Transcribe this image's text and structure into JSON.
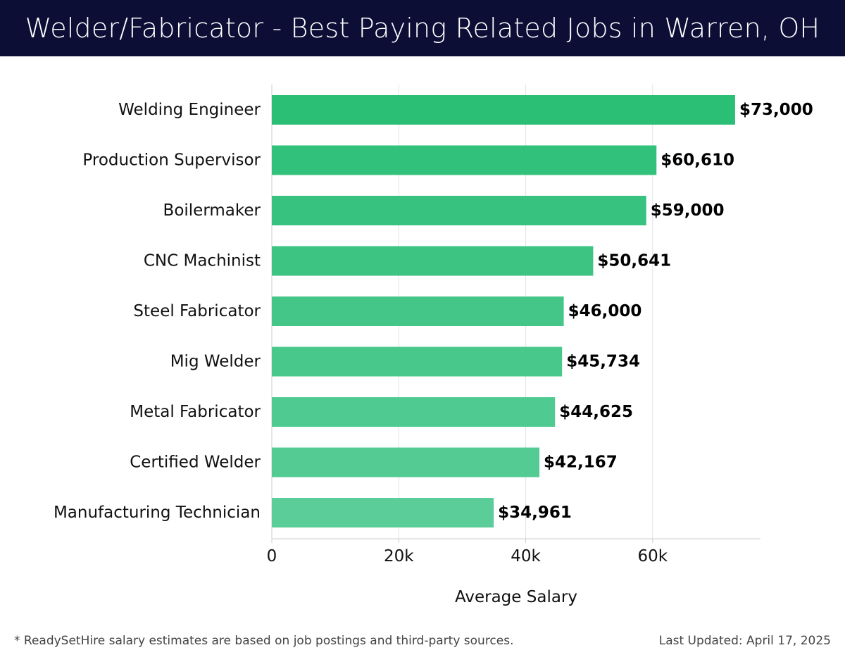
{
  "header": {
    "title": "Welder/Fabricator - Best Paying Related Jobs in Warren, OH"
  },
  "footer": {
    "note": "* ReadySetHire salary estimates are based on job postings and third-party sources.",
    "updated": "Last Updated: April 17, 2025"
  },
  "chart_data": {
    "type": "bar",
    "orientation": "horizontal",
    "categories": [
      "Welding Engineer",
      "Production Supervisor",
      "Boilermaker",
      "CNC Machinist",
      "Steel Fabricator",
      "Mig Welder",
      "Metal Fabricator",
      "Certified Welder",
      "Manufacturing Technician"
    ],
    "values": [
      73000,
      60610,
      59000,
      50641,
      46000,
      45734,
      44625,
      42167,
      34961
    ],
    "value_labels": [
      "$73,000",
      "$60,610",
      "$59,000",
      "$50,641",
      "$46,000",
      "$45,734",
      "$44,625",
      "$42,167",
      "$34,961"
    ],
    "title": "",
    "xlabel": "Average Salary",
    "ylabel": "",
    "xlim": [
      0,
      77000
    ],
    "xticks": [
      0,
      20000,
      40000,
      60000
    ],
    "xtick_labels": [
      "0",
      "20k",
      "40k",
      "60k"
    ],
    "grid": true,
    "legend": "none",
    "colors": {
      "bar_top": "#2bbf76",
      "bar_bottom": "#5bcd98",
      "grid": "#e3e3e3",
      "axis": "#cccccc",
      "label": "#111111"
    }
  }
}
